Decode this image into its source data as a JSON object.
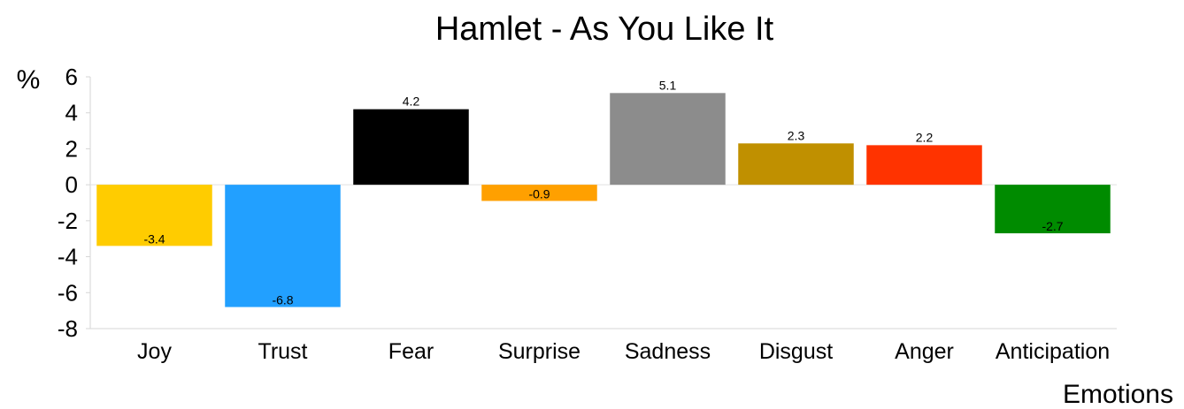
{
  "chart_data": {
    "type": "bar",
    "title": "Hamlet - As You Like It",
    "xlabel": "Emotions",
    "ylabel": "%",
    "categories": [
      "Joy",
      "Trust",
      "Fear",
      "Surprise",
      "Sadness",
      "Disgust",
      "Anger",
      "Anticipation"
    ],
    "values": [
      -3.4,
      -6.8,
      4.2,
      -0.9,
      5.1,
      2.3,
      2.2,
      -2.7
    ],
    "data_labels": [
      "-3.4",
      "-6.8",
      "4.2",
      "-0.9",
      "5.1",
      "2.3",
      "2.2",
      "-2.7"
    ],
    "colors": [
      "#FFCC00",
      "#22A0FF",
      "#000000",
      "#FFA000",
      "#8C8C8C",
      "#C09000",
      "#FF3300",
      "#008B00"
    ],
    "ylim": [
      -8,
      6
    ],
    "yticks": [
      -8,
      -6,
      -4,
      -2,
      0,
      2,
      4,
      6
    ],
    "ytick_labels": [
      "-8",
      "-6",
      "-4",
      "-2",
      "0",
      "2",
      "4",
      "6"
    ],
    "grid": false,
    "legend": "none"
  }
}
